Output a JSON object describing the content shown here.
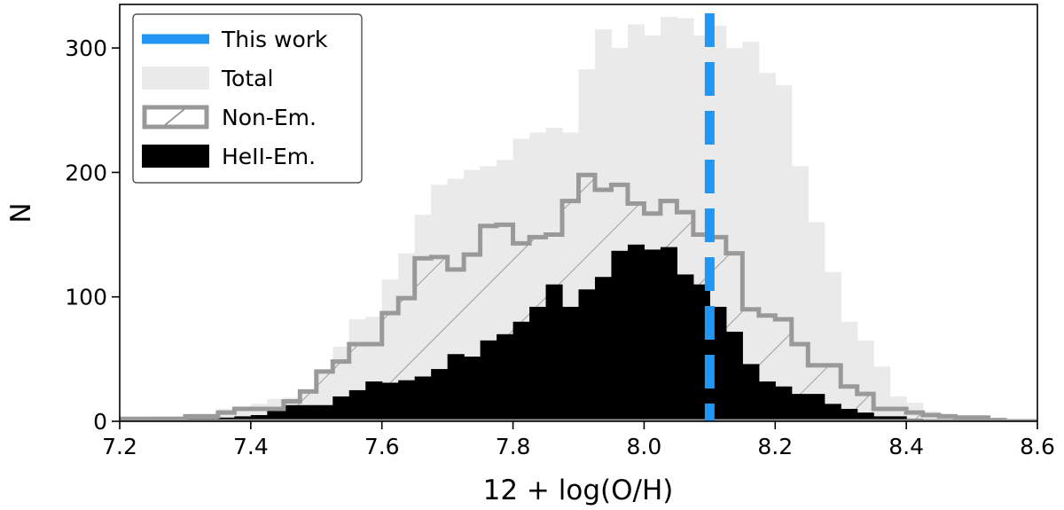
{
  "chart_data": {
    "type": "histogram",
    "xlabel": "12 + log(O/H)",
    "ylabel": "N",
    "xlim": [
      7.2,
      8.6
    ],
    "ylim": [
      0,
      335
    ],
    "xticks": [
      "7.2",
      "7.4",
      "7.6",
      "7.8",
      "8.0",
      "8.2",
      "8.4",
      "8.6"
    ],
    "yticks": [
      "0",
      "100",
      "200",
      "300"
    ],
    "bin_edges_start": 7.2,
    "bin_width": 0.025,
    "legend_position": "upper-left",
    "legend": [
      {
        "label": "This work",
        "style": "dashed-line"
      },
      {
        "label": "Total",
        "style": "fill"
      },
      {
        "label": "Non-Em.",
        "style": "hatched-step"
      },
      {
        "label": "HeII-Em.",
        "style": "fill"
      }
    ],
    "reference_line": {
      "label": "This work",
      "x": 8.1,
      "color": "#2196f3"
    },
    "series": [
      {
        "name": "Total",
        "color": "#eaeaea",
        "values": [
          3,
          3,
          4,
          4,
          6,
          6,
          10,
          12,
          14,
          18,
          19,
          25,
          40,
          60,
          82,
          84,
          114,
          135,
          166,
          190,
          195,
          202,
          205,
          210,
          227,
          232,
          236,
          232,
          283,
          315,
          300,
          319,
          310,
          325,
          324,
          310,
          318,
          300,
          305,
          280,
          270,
          205,
          160,
          120,
          80,
          65,
          44,
          20,
          15,
          8,
          6,
          3,
          2,
          1,
          1,
          0
        ]
      },
      {
        "name": "Non-Em.",
        "color": "#999999",
        "values": [
          2,
          2,
          2,
          2,
          4,
          4,
          7,
          10,
          10,
          10,
          16,
          24,
          40,
          48,
          62,
          62,
          87,
          99,
          131,
          132,
          122,
          134,
          157,
          158,
          143,
          148,
          150,
          177,
          198,
          186,
          190,
          175,
          167,
          177,
          168,
          150,
          148,
          135,
          90,
          85,
          82,
          62,
          45,
          45,
          28,
          22,
          10,
          10,
          7,
          5,
          4,
          3,
          3,
          1,
          0,
          0
        ]
      },
      {
        "name": "HeII-Em.",
        "color": "#000000",
        "values": [
          1,
          1,
          1,
          1,
          2,
          2,
          3,
          4,
          5,
          9,
          13,
          13,
          13,
          20,
          25,
          32,
          31,
          33,
          36,
          42,
          54,
          52,
          65,
          70,
          80,
          92,
          110,
          92,
          106,
          116,
          137,
          142,
          138,
          140,
          118,
          110,
          92,
          72,
          46,
          32,
          28,
          22,
          22,
          14,
          10,
          7,
          4,
          4,
          2,
          1,
          1,
          1,
          0,
          0,
          0,
          0
        ]
      }
    ]
  }
}
